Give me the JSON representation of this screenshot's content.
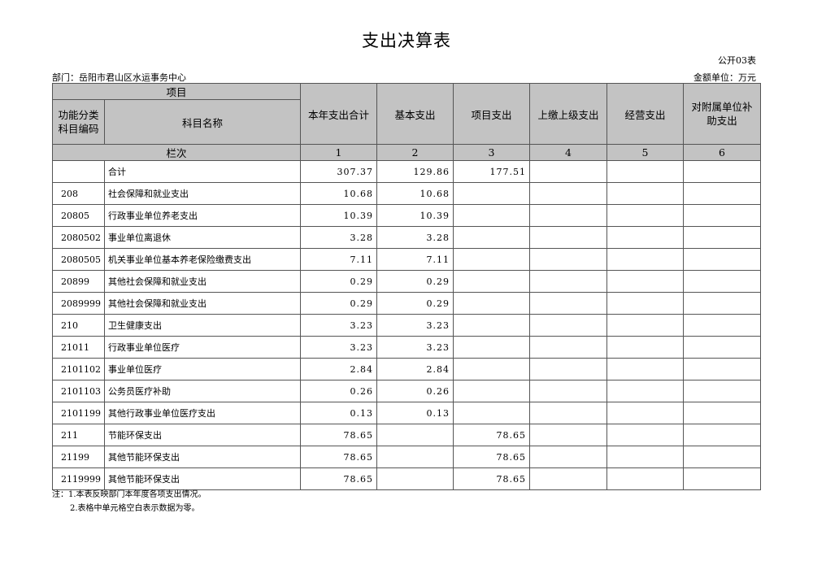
{
  "title": "支出决算表",
  "form_no": "公开03表",
  "department": "部门：岳阳市君山区水运事务中心",
  "unit": "金额单位：万元",
  "headers": {
    "item": "项目",
    "code": "功能分类科目编码",
    "name": "科目名称",
    "col1": "本年支出合计",
    "col2": "基本支出",
    "col3": "项目支出",
    "col4": "上缴上级支出",
    "col5": "经营支出",
    "col6": "对附属单位补助支出",
    "row_label": "栏次",
    "nums": [
      "1",
      "2",
      "3",
      "4",
      "5",
      "6"
    ]
  },
  "rows": [
    {
      "code": "",
      "name": "合计",
      "c1": "307.37",
      "c2": "129.86",
      "c3": "177.51"
    },
    {
      "code": "208",
      "name": "社会保障和就业支出",
      "c1": "10.68",
      "c2": "10.68",
      "c3": ""
    },
    {
      "code": "20805",
      "name": "行政事业单位养老支出",
      "c1": "10.39",
      "c2": "10.39",
      "c3": ""
    },
    {
      "code": "2080502",
      "name": "事业单位离退休",
      "c1": "3.28",
      "c2": "3.28",
      "c3": ""
    },
    {
      "code": "2080505",
      "name": "机关事业单位基本养老保险缴费支出",
      "c1": "7.11",
      "c2": "7.11",
      "c3": ""
    },
    {
      "code": "20899",
      "name": "其他社会保障和就业支出",
      "c1": "0.29",
      "c2": "0.29",
      "c3": ""
    },
    {
      "code": "2089999",
      "name": "其他社会保障和就业支出",
      "c1": "0.29",
      "c2": "0.29",
      "c3": ""
    },
    {
      "code": "210",
      "name": "卫生健康支出",
      "c1": "3.23",
      "c2": "3.23",
      "c3": ""
    },
    {
      "code": "21011",
      "name": "行政事业单位医疗",
      "c1": "3.23",
      "c2": "3.23",
      "c3": ""
    },
    {
      "code": "2101102",
      "name": "事业单位医疗",
      "c1": "2.84",
      "c2": "2.84",
      "c3": ""
    },
    {
      "code": "2101103",
      "name": "公务员医疗补助",
      "c1": "0.26",
      "c2": "0.26",
      "c3": ""
    },
    {
      "code": "2101199",
      "name": "其他行政事业单位医疗支出",
      "c1": "0.13",
      "c2": "0.13",
      "c3": ""
    },
    {
      "code": "211",
      "name": "节能环保支出",
      "c1": "78.65",
      "c2": "",
      "c3": "78.65"
    },
    {
      "code": "21199",
      "name": "其他节能环保支出",
      "c1": "78.65",
      "c2": "",
      "c3": "78.65"
    },
    {
      "code": "2119999",
      "name": "其他节能环保支出",
      "c1": "78.65",
      "c2": "",
      "c3": "78.65"
    }
  ],
  "notes": [
    "注：1.本表反映部门本年度各项支出情况。",
    "2.表格中单元格空白表示数据为零。"
  ]
}
